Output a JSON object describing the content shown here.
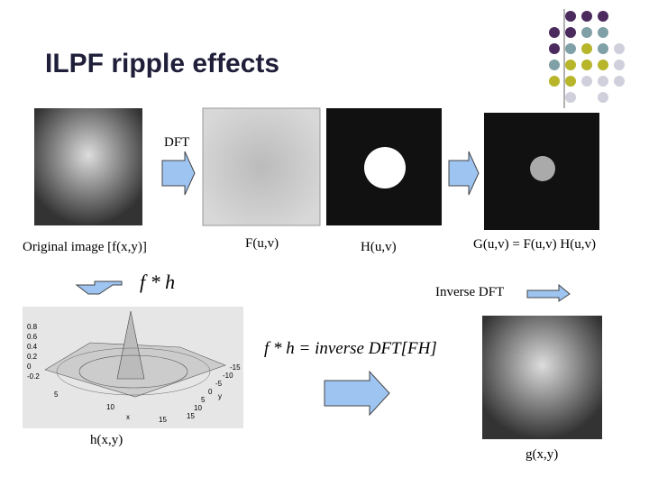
{
  "header": {
    "title": "ILPF ripple effects"
  },
  "labels": {
    "dft": "DFT",
    "original": "Original image [f(x,y)]",
    "f_uv": "F(u,v)",
    "h_uv": "H(u,v)",
    "g_uv": "G(u,v) = F(u,v) H(u,v)",
    "conv": "f * h",
    "inverse": "Inverse DFT",
    "formula": "f * h = inverse DFT[FH]",
    "h_xy": "h(x,y)",
    "g_xy": "g(x,y)"
  },
  "plot": {
    "z_ticks": [
      "0.8",
      "0.6",
      "0.4",
      "0.2",
      "0",
      "-0.2"
    ],
    "x_ticks": [
      "5",
      "10",
      "15"
    ],
    "y_ticks": [
      "-15",
      "-10",
      "-5",
      "0",
      "5",
      "10",
      "15"
    ],
    "x_label": "x",
    "y_label": "y"
  }
}
